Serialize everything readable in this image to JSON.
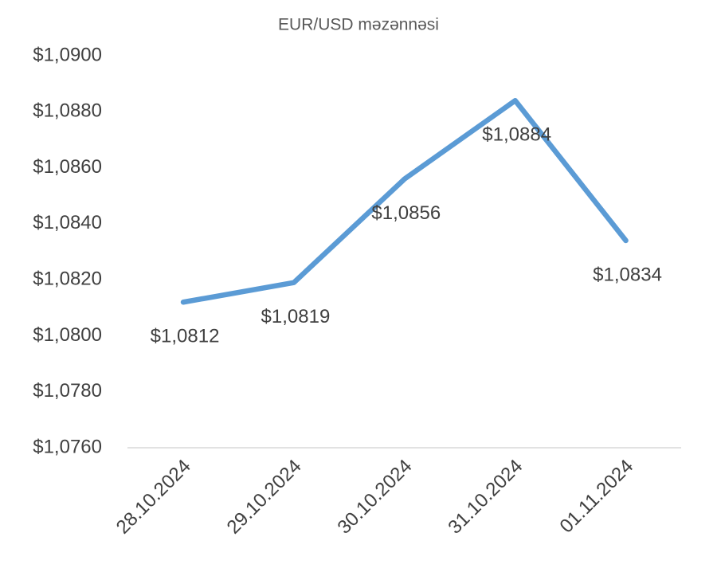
{
  "chart_data": {
    "type": "line",
    "title": "EUR/USD məzənnəsi",
    "categories": [
      "28.10.2024",
      "29.10.2024",
      "30.10.2024",
      "31.10.2024",
      "01.11.2024"
    ],
    "values": [
      1.0812,
      1.0819,
      1.0856,
      1.0884,
      1.0834
    ],
    "value_labels": [
      "$1,0812",
      "$1,0819",
      "$1,0856",
      "$1,0884",
      "$1,0834"
    ],
    "color": "#5b9bd5",
    "ylim": [
      1.076,
      1.09
    ],
    "yticks": [
      {
        "value": 1.076,
        "label": "$1,0760"
      },
      {
        "value": 1.078,
        "label": "$1,0780"
      },
      {
        "value": 1.08,
        "label": "$1,0800"
      },
      {
        "value": 1.082,
        "label": "$1,0820"
      },
      {
        "value": 1.084,
        "label": "$1,0840"
      },
      {
        "value": 1.086,
        "label": "$1,0860"
      },
      {
        "value": 1.088,
        "label": "$1,0880"
      },
      {
        "value": 1.09,
        "label": "$1,0900"
      }
    ],
    "grid": false
  }
}
